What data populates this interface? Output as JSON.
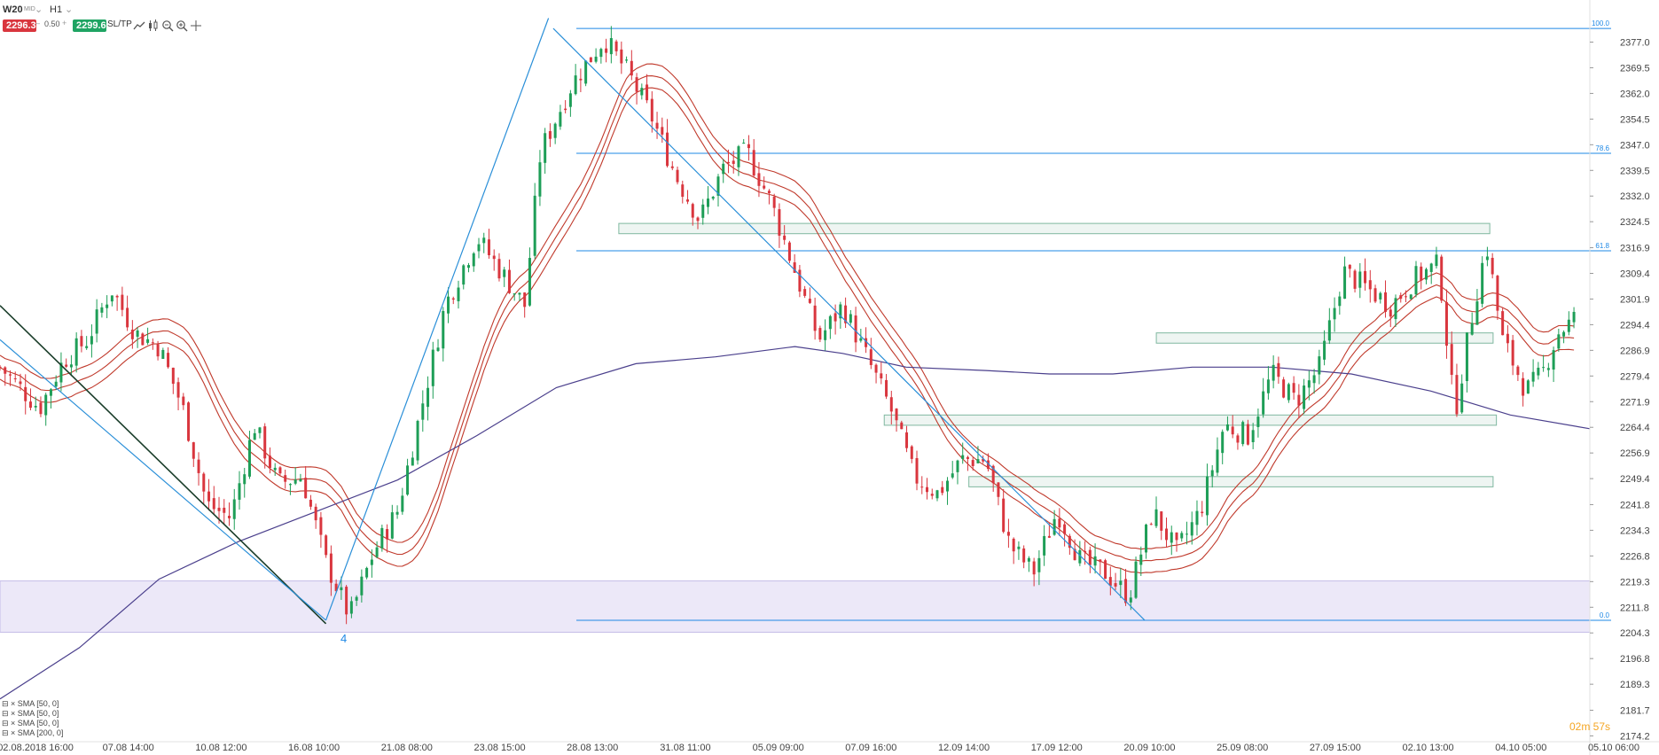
{
  "toolbar": {
    "symbol": "W20",
    "symbol_suffix": "MID",
    "timeframe": "H1",
    "bid": "2296.3",
    "lot": "0.50",
    "ask": "2299.6",
    "sltp": "SL/TP",
    "bid_color": "#d9363e",
    "ask_color": "#1fa463",
    "icons": [
      "line-chart-icon",
      "candle-chart-icon",
      "zoom-out-icon",
      "zoom-in-icon",
      "crosshair-icon"
    ]
  },
  "countdown": "02m 57s",
  "wave_label": "4",
  "legend": [
    "SMA [50, 0]",
    "SMA [50, 0]",
    "SMA [50, 0]",
    "SMA [200, 0]"
  ],
  "chart_data": {
    "type": "candlestick",
    "y_ticks": [
      "2377.0",
      "2369.5",
      "2362.0",
      "2354.5",
      "2347.0",
      "2339.5",
      "2332.0",
      "2324.5",
      "2316.9",
      "2309.4",
      "2301.9",
      "2294.4",
      "2286.9",
      "2279.4",
      "2271.9",
      "2264.4",
      "2256.9",
      "2249.4",
      "2241.8",
      "2234.3",
      "2226.8",
      "2219.3",
      "2211.8",
      "2204.3",
      "2196.8",
      "2189.3",
      "2181.7",
      "2174.2"
    ],
    "ylim": [
      2172.5,
      2380.5
    ],
    "x_ticks": [
      "02.08.2018 16:00",
      "07.08 14:00",
      "10.08 12:00",
      "16.08 10:00",
      "21.08 08:00",
      "23.08 15:00",
      "28.08 13:00",
      "31.08 11:00",
      "05.09 09:00",
      "07.09 16:00",
      "12.09 14:00",
      "17.09 12:00",
      "20.09 10:00",
      "25.09 08:00",
      "27.09 15:00",
      "02.10 13:00",
      "04.10 05:00",
      "05.10 06:00"
    ],
    "fib_levels": [
      {
        "label": "100.0",
        "price": 2381.0
      },
      {
        "label": "78.6",
        "price": 2344.5
      },
      {
        "label": "61.8",
        "price": 2316.0
      },
      {
        "label": "0.0",
        "price": 2208.0
      }
    ],
    "close_path": [
      {
        "t": 0.0,
        "p": 2282
      },
      {
        "t": 2.5,
        "p": 2270
      },
      {
        "t": 4.0,
        "p": 2284
      },
      {
        "t": 5.5,
        "p": 2290
      },
      {
        "t": 7.0,
        "p": 2305
      },
      {
        "t": 8.5,
        "p": 2292
      },
      {
        "t": 10.0,
        "p": 2288
      },
      {
        "t": 11.5,
        "p": 2270
      },
      {
        "t": 13.0,
        "p": 2242
      },
      {
        "t": 14.5,
        "p": 2238
      },
      {
        "t": 16.0,
        "p": 2265
      },
      {
        "t": 17.5,
        "p": 2248
      },
      {
        "t": 19.0,
        "p": 2250
      },
      {
        "t": 20.5,
        "p": 2225
      },
      {
        "t": 22.0,
        "p": 2209
      },
      {
        "t": 23.5,
        "p": 2228
      },
      {
        "t": 25.0,
        "p": 2240
      },
      {
        "t": 26.5,
        "p": 2270
      },
      {
        "t": 28.0,
        "p": 2300
      },
      {
        "t": 30.0,
        "p": 2320
      },
      {
        "t": 31.5,
        "p": 2310
      },
      {
        "t": 33.0,
        "p": 2300
      },
      {
        "t": 34.0,
        "p": 2345
      },
      {
        "t": 36.0,
        "p": 2365
      },
      {
        "t": 38.0,
        "p": 2378
      },
      {
        "t": 39.5,
        "p": 2368
      },
      {
        "t": 41.0,
        "p": 2355
      },
      {
        "t": 42.5,
        "p": 2338
      },
      {
        "t": 44.0,
        "p": 2325
      },
      {
        "t": 45.5,
        "p": 2340
      },
      {
        "t": 47.0,
        "p": 2345
      },
      {
        "t": 48.5,
        "p": 2330
      },
      {
        "t": 50.0,
        "p": 2310
      },
      {
        "t": 51.5,
        "p": 2290
      },
      {
        "t": 53.0,
        "p": 2300
      },
      {
        "t": 54.5,
        "p": 2285
      },
      {
        "t": 56.0,
        "p": 2270
      },
      {
        "t": 57.5,
        "p": 2250
      },
      {
        "t": 59.0,
        "p": 2245
      },
      {
        "t": 60.5,
        "p": 2255
      },
      {
        "t": 62.0,
        "p": 2255
      },
      {
        "t": 63.5,
        "p": 2230
      },
      {
        "t": 65.0,
        "p": 2222
      },
      {
        "t": 66.5,
        "p": 2240
      },
      {
        "t": 68.0,
        "p": 2225
      },
      {
        "t": 69.5,
        "p": 2222
      },
      {
        "t": 71.0,
        "p": 2215
      },
      {
        "t": 72.5,
        "p": 2240
      },
      {
        "t": 74.0,
        "p": 2228
      },
      {
        "t": 75.5,
        "p": 2240
      },
      {
        "t": 77.0,
        "p": 2265
      },
      {
        "t": 78.5,
        "p": 2262
      },
      {
        "t": 80.0,
        "p": 2280
      },
      {
        "t": 81.5,
        "p": 2272
      },
      {
        "t": 83.0,
        "p": 2282
      },
      {
        "t": 84.5,
        "p": 2310
      },
      {
        "t": 86.0,
        "p": 2305
      },
      {
        "t": 87.5,
        "p": 2300
      },
      {
        "t": 89.0,
        "p": 2308
      },
      {
        "t": 90.5,
        "p": 2312
      },
      {
        "t": 91.5,
        "p": 2268
      },
      {
        "t": 92.5,
        "p": 2295
      },
      {
        "t": 93.5,
        "p": 2318
      },
      {
        "t": 94.5,
        "p": 2290
      },
      {
        "t": 96.0,
        "p": 2275
      },
      {
        "t": 97.0,
        "p": 2280
      },
      {
        "t": 98.0,
        "p": 2292
      },
      {
        "t": 99.0,
        "p": 2296
      }
    ],
    "sma200": [
      {
        "t": 0,
        "p": 2185
      },
      {
        "t": 5,
        "p": 2200
      },
      {
        "t": 10,
        "p": 2220
      },
      {
        "t": 15,
        "p": 2231
      },
      {
        "t": 20,
        "p": 2240
      },
      {
        "t": 25,
        "p": 2249
      },
      {
        "t": 30,
        "p": 2262
      },
      {
        "t": 35,
        "p": 2276
      },
      {
        "t": 40,
        "p": 2283
      },
      {
        "t": 45,
        "p": 2285
      },
      {
        "t": 50,
        "p": 2288
      },
      {
        "t": 53,
        "p": 2286
      },
      {
        "t": 57,
        "p": 2282
      },
      {
        "t": 62,
        "p": 2281
      },
      {
        "t": 66,
        "p": 2280
      },
      {
        "t": 70,
        "p": 2280
      },
      {
        "t": 75,
        "p": 2282
      },
      {
        "t": 80,
        "p": 2282
      },
      {
        "t": 85,
        "p": 2280
      },
      {
        "t": 90,
        "p": 2275
      },
      {
        "t": 95,
        "p": 2268
      },
      {
        "t": 100,
        "p": 2264
      }
    ],
    "sma50_offsets": [
      0,
      3.5,
      -3.5
    ],
    "support_zones": [
      {
        "from": 2324,
        "to": 2321,
        "x0": 0.373,
        "x1": 0.898
      },
      {
        "from": 2292,
        "to": 2289,
        "x0": 0.697,
        "x1": 0.9
      },
      {
        "from": 2268,
        "to": 2265,
        "x0": 0.533,
        "x1": 0.902
      },
      {
        "from": 2250,
        "to": 2247,
        "x0": 0.584,
        "x1": 0.9
      }
    ],
    "demand_zone": {
      "from": 2219.5,
      "to": 2204.5
    },
    "trendlines": [
      {
        "name": "diagonal-1",
        "from": {
          "t": 0,
          "p": 2300
        },
        "to": {
          "t": 20.5,
          "p": 2207
        }
      },
      {
        "name": "diagonal-2",
        "from": {
          "t": 0,
          "p": 2290
        },
        "to": {
          "t": 20.5,
          "p": 2208
        }
      },
      {
        "name": "impulse-up",
        "from": {
          "t": 20.5,
          "p": 2208
        },
        "to": {
          "t": 34.5,
          "p": 2384
        }
      },
      {
        "name": "decline",
        "from": {
          "t": 34.8,
          "p": 2381
        },
        "to": {
          "t": 72,
          "p": 2208
        }
      }
    ],
    "axis_fraction_x": 0.955
  }
}
